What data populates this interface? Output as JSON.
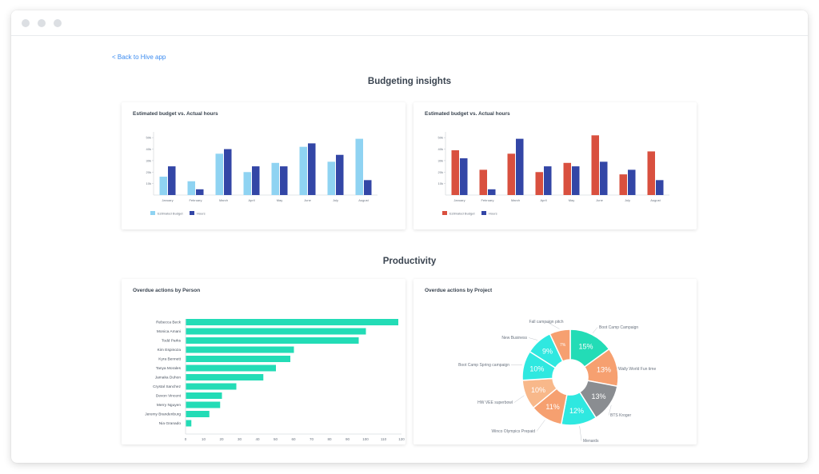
{
  "back_link": "< Back to Hive app",
  "sections": {
    "budgeting": "Budgeting insights",
    "productivity": "Productivity"
  },
  "colors": {
    "light_blue": "#8fd3f2",
    "navy": "#3346a6",
    "red": "#d9503f",
    "teal": "#23dcb6",
    "orange": "#f6a070",
    "cyan": "#2fe8e0",
    "gray": "#8a8d91",
    "peach": "#f8b88a"
  },
  "cards": {
    "budget_left": {
      "title": "Estimated budget  vs. Actual hours",
      "chart_data": {
        "type": "bar",
        "title": "Estimated budget  vs. Actual hours",
        "categories": [
          "January",
          "February",
          "March",
          "April",
          "May",
          "June",
          "July",
          "August"
        ],
        "series": [
          {
            "name": "Estimated Budget",
            "color": "#8fd3f2",
            "values": [
              16,
              12,
              36,
              20,
              28,
              42,
              29,
              49
            ]
          },
          {
            "name": "Hours",
            "color": "#3346a6",
            "values": [
              25,
              5,
              40,
              25,
              25,
              45,
              35,
              13
            ]
          }
        ],
        "ylim": [
          0,
          55
        ],
        "yticks": [
          "10k",
          "20k",
          "30k",
          "40k",
          "50k"
        ],
        "legend": "bottom"
      }
    },
    "budget_right": {
      "title": "Estimated budget  vs. Actual hours",
      "chart_data": {
        "type": "bar",
        "title": "Estimated budget  vs. Actual hours",
        "categories": [
          "January",
          "February",
          "March",
          "April",
          "May",
          "June",
          "July",
          "August"
        ],
        "series": [
          {
            "name": "Estimated Budget",
            "color": "#d9503f",
            "values": [
              39,
              22,
              36,
              20,
              28,
              52,
              18,
              38
            ]
          },
          {
            "name": "Hours",
            "color": "#3346a6",
            "values": [
              32,
              5,
              49,
              25,
              25,
              29,
              22,
              13
            ]
          }
        ],
        "ylim": [
          0,
          55
        ],
        "yticks": [
          "10k",
          "20k",
          "30k",
          "40k",
          "50k"
        ],
        "legend": "bottom"
      }
    },
    "overdue_person": {
      "title": "Overdue actions by Person",
      "chart_data": {
        "type": "bar",
        "orientation": "horizontal",
        "title": "Overdue actions by Person",
        "categories": [
          "Rebecca Beck",
          "Monica Amani",
          "Todd Parks",
          "Kim Espinoza",
          "Kyra Bennett",
          "Tanya Morales",
          "Jamaka Duhon",
          "Crystal Sanchez",
          "Devon Vincent",
          "Merry Nguyen",
          "Jeremy Brandenburg",
          "Nia Granado"
        ],
        "values": [
          118,
          100,
          96,
          60,
          58,
          50,
          43,
          28,
          20,
          19,
          13,
          3
        ],
        "xlim": [
          0,
          120
        ],
        "xticks": [
          "0",
          "10",
          "20",
          "30",
          "40",
          "50",
          "60",
          "70",
          "80",
          "90",
          "100",
          "110",
          "120"
        ],
        "color": "#23dcb6"
      }
    },
    "overdue_project": {
      "title": "Overdue actions by Project",
      "chart_data": {
        "type": "pie",
        "title": "Overdue actions by Project",
        "slices": [
          {
            "label": "Boot Camp Campaign",
            "value": 15,
            "text": "15%",
            "color": "#23dcb6"
          },
          {
            "label": "Wally World Fun time",
            "value": 13,
            "text": "13%",
            "color": "#f6a070"
          },
          {
            "label": "BTS Kroger",
            "value": 13,
            "text": "13%",
            "color": "#8a8d91"
          },
          {
            "label": "Menards",
            "value": 12,
            "text": "12%",
            "color": "#2fe8e0"
          },
          {
            "label": "Winco Olympics Prepaid",
            "value": 11,
            "text": "11%",
            "color": "#f6a070"
          },
          {
            "label": "HW VEE superbowl",
            "value": 10,
            "text": "10%",
            "color": "#f8b88a"
          },
          {
            "label": "Boot Camp Spring campaign",
            "value": 10,
            "text": "10%",
            "color": "#2fe8e0"
          },
          {
            "label": "New Business",
            "value": 9,
            "text": "9%",
            "color": "#2fe8e0"
          },
          {
            "label": "Fall campaign pitch",
            "value": 7,
            "text": "7%",
            "color": "#f6a070"
          }
        ]
      }
    }
  }
}
